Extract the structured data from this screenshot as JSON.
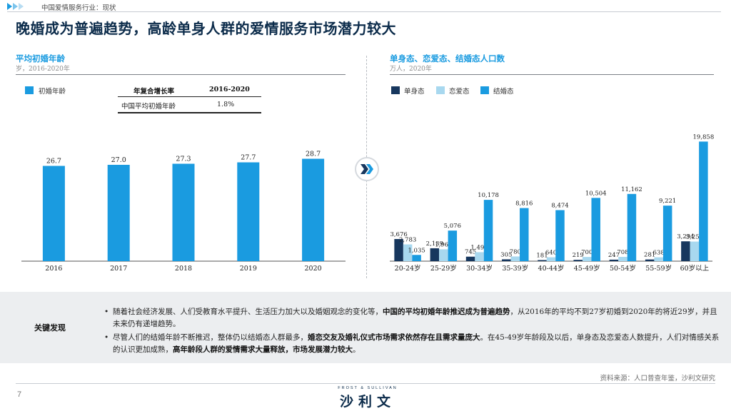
{
  "header": {
    "breadcrumb": "中国爱情服务行业：现状",
    "title": "晚婚成为普遍趋势，高龄单身人群的爱情服务市场潜力较大"
  },
  "colors": {
    "accent": "#1a9be0",
    "dark": "#17375e",
    "light": "#a8d8ef",
    "navy": "#0b2b4a"
  },
  "left_panel": {
    "title": "平均初婚年龄",
    "subtitle": "岁，2016-2020年",
    "legend_label": "初婚年龄",
    "growth_table": {
      "headers": [
        "年复合增长率",
        "2016-2020"
      ],
      "row": [
        "中国平均初婚年龄",
        "1.8%"
      ]
    }
  },
  "right_panel": {
    "title": "单身态、恋爱态、结婚态人口数",
    "subtitle": "万人，2020年",
    "legend": [
      "单身态",
      "恋爱态",
      "结婚态"
    ]
  },
  "chart_data": [
    {
      "type": "bar",
      "categories": [
        "2016",
        "2017",
        "2018",
        "2019",
        "2020"
      ],
      "series": [
        {
          "name": "初婚年龄",
          "values": [
            26.7,
            27.0,
            27.3,
            27.7,
            28.7
          ]
        }
      ],
      "value_labels": [
        "26.7",
        "27.0",
        "27.3",
        "27.7",
        "28.7"
      ],
      "ylim": [
        0,
        32
      ]
    },
    {
      "type": "bar",
      "categories": [
        "20-24岁",
        "25-29岁",
        "30-34岁",
        "35-39岁",
        "40-44岁",
        "45-49岁",
        "50-54岁",
        "55-59岁",
        "60岁以上"
      ],
      "series": [
        {
          "name": "单身态",
          "values": [
            3676,
            2139,
            745,
            305,
            181,
            219,
            247,
            281,
            3294
          ]
        },
        {
          "name": "恋爱态",
          "values": [
            2783,
            1969,
            1492,
            780,
            640,
            700,
            708,
            638,
            3250
          ]
        },
        {
          "name": "结婚态",
          "values": [
            1035,
            5076,
            10178,
            8816,
            8474,
            10504,
            11162,
            9221,
            19858
          ]
        }
      ],
      "value_labels": [
        [
          "3,676",
          "2,139",
          "745",
          "305",
          "181",
          "219",
          "247",
          "281",
          "3,294"
        ],
        [
          "2,783",
          "1,969",
          "1,492",
          "780",
          "640",
          "700",
          "708",
          "638",
          "3,250"
        ],
        [
          "1,035",
          "5,076",
          "10,178",
          "8,816",
          "8,474",
          "10,504",
          "11,162",
          "9,221",
          "19,858"
        ]
      ],
      "ylim": [
        0,
        20500
      ]
    }
  ],
  "findings": {
    "label": "关键发现",
    "bullet_glyph": "•",
    "bullet1": {
      "p1": "随着社会经济发展、人们受教育水平提升、生活压力加大以及婚姻观念的变化等，",
      "b1": "中国的平均初婚年龄推迟成为普遍趋势",
      "p2": "，从2016年的平均不到27岁初婚到2020年的将近29岁，并且未来仍有递增趋势。"
    },
    "bullet2": {
      "p1": "尽管人们的结婚年龄不断推迟，整体仍以结婚态人群最多，",
      "b1": "婚恋交友及婚礼仪式市场需求依然存在且需求量庞大",
      "p2": "。在45-49岁年龄段及以后，单身态及恋爱态人数提升，人们对情感关系的认识更加成熟，",
      "b2": "高年龄段人群的爱情需求大量释放，市场发展潜力较大",
      "p3": "。"
    }
  },
  "footer": {
    "source": "资料来源：人口普查年鉴，沙利文研究",
    "page_number": "7",
    "logo_top": "FROST & SULLIVAN",
    "logo_main": "沙利文"
  }
}
